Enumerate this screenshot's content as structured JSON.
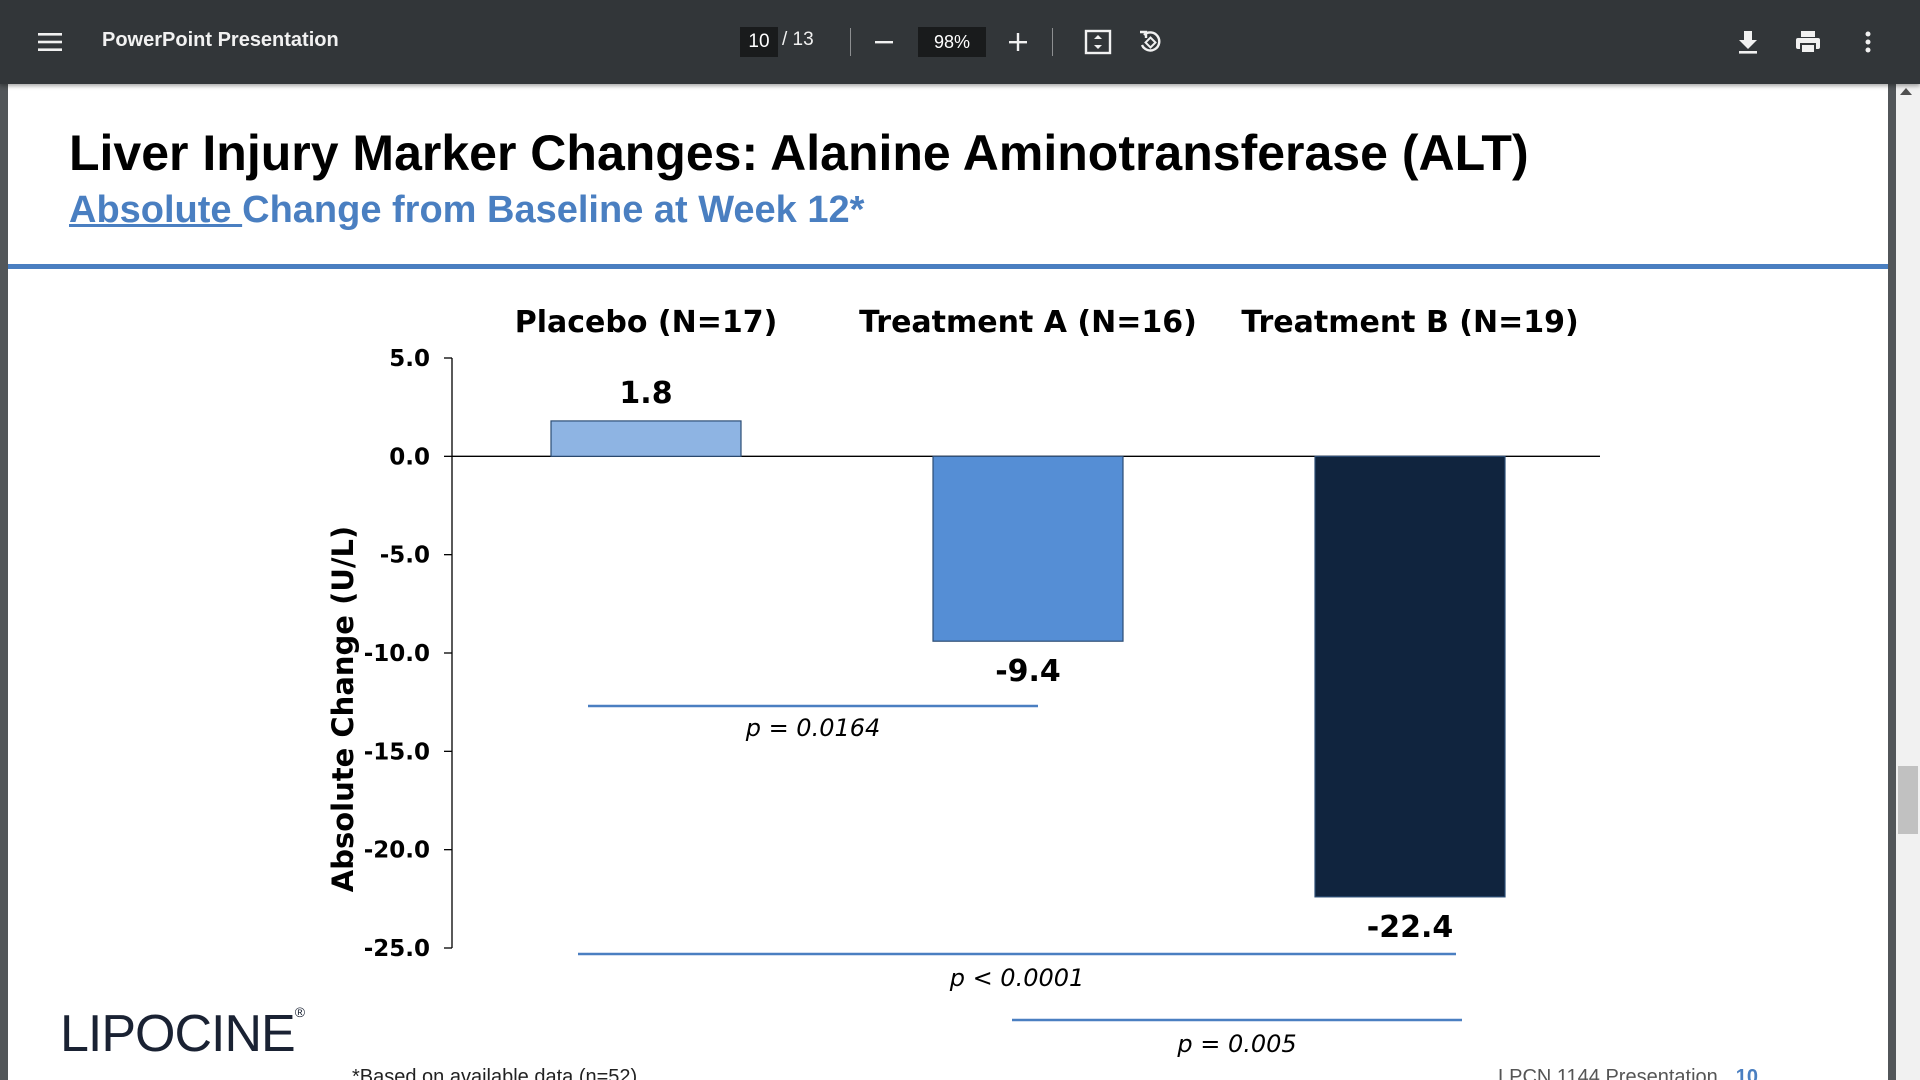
{
  "toolbar": {
    "menu_icon": "menu-icon",
    "title": "PowerPoint Presentation",
    "current_page": "10",
    "total_pages": "/ 13",
    "zoom": "98%",
    "icons": [
      "zoom-out-icon",
      "zoom-in-icon",
      "fit-page-icon",
      "rotate-icon",
      "download-icon",
      "print-icon",
      "more-vert-icon"
    ]
  },
  "slide": {
    "title": "Liver Injury Marker Changes: Alanine Aminotransferase (ALT)",
    "subtitle_underlined": "Absolute ",
    "subtitle_rest": "Change from Baseline at Week 12*",
    "footnote": "*Based on available data (n=52)",
    "footer_text": "LPCN 1144 Presentation",
    "footer_page": "10",
    "logo_text": "LIPOCINE",
    "logo_mark": "®"
  },
  "colors": {
    "accent": "#4a7fc1",
    "placebo": "#8eb4e3",
    "treatment_a": "#558ed5",
    "treatment_b": "#10243e"
  },
  "chart_data": {
    "type": "bar",
    "title": "",
    "ylabel": "Absolute Change (U/L)",
    "xlabel": "",
    "categories": [
      "Placebo (N=17)",
      "Treatment A (N=16)",
      "Treatment B (N=19)"
    ],
    "values": [
      1.8,
      -9.4,
      -22.4
    ],
    "value_labels": [
      "1.8",
      "-9.4",
      "-22.4"
    ],
    "ylim": [
      -25.0,
      5.0
    ],
    "yticks": [
      5.0,
      0.0,
      -5.0,
      -10.0,
      -15.0,
      -20.0,
      -25.0
    ],
    "ytick_labels": [
      "5.0",
      "0.0",
      "-5.0",
      "-10.0",
      "-15.0",
      "-20.0",
      "-25.0"
    ],
    "grid": false,
    "annotations": [
      {
        "text": "p = 0.0164",
        "from": "Placebo (N=17)",
        "to": "Treatment A (N=16)"
      },
      {
        "text": "p < 0.0001",
        "from": "Placebo (N=17)",
        "to": "Treatment B (N=19)"
      },
      {
        "text": "p = 0.005",
        "from": "Treatment A (N=16)",
        "to": "Treatment B (N=19)"
      }
    ]
  }
}
